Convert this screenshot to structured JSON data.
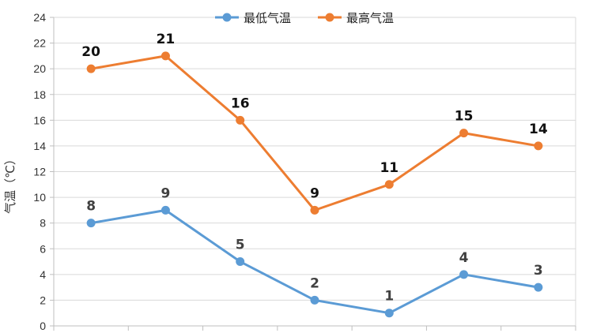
{
  "chart_data": {
    "type": "line",
    "ylabel": "气温（℃）",
    "ylim": [
      0,
      24
    ],
    "yticks": [
      0,
      2,
      4,
      6,
      8,
      10,
      12,
      14,
      16,
      18,
      20,
      22,
      24
    ],
    "categories": [
      "",
      "",
      "",
      "",
      "",
      "",
      ""
    ],
    "grid": true,
    "legend": "top-center",
    "series": [
      {
        "name": "最低气温",
        "color": "#5b9bd5",
        "values": [
          8,
          9,
          5,
          2,
          1,
          4,
          3
        ],
        "label_color": "#404040"
      },
      {
        "name": "最高气温",
        "color": "#ed7d31",
        "values": [
          20,
          21,
          16,
          9,
          11,
          15,
          14
        ],
        "label_color": "#111111"
      }
    ]
  }
}
